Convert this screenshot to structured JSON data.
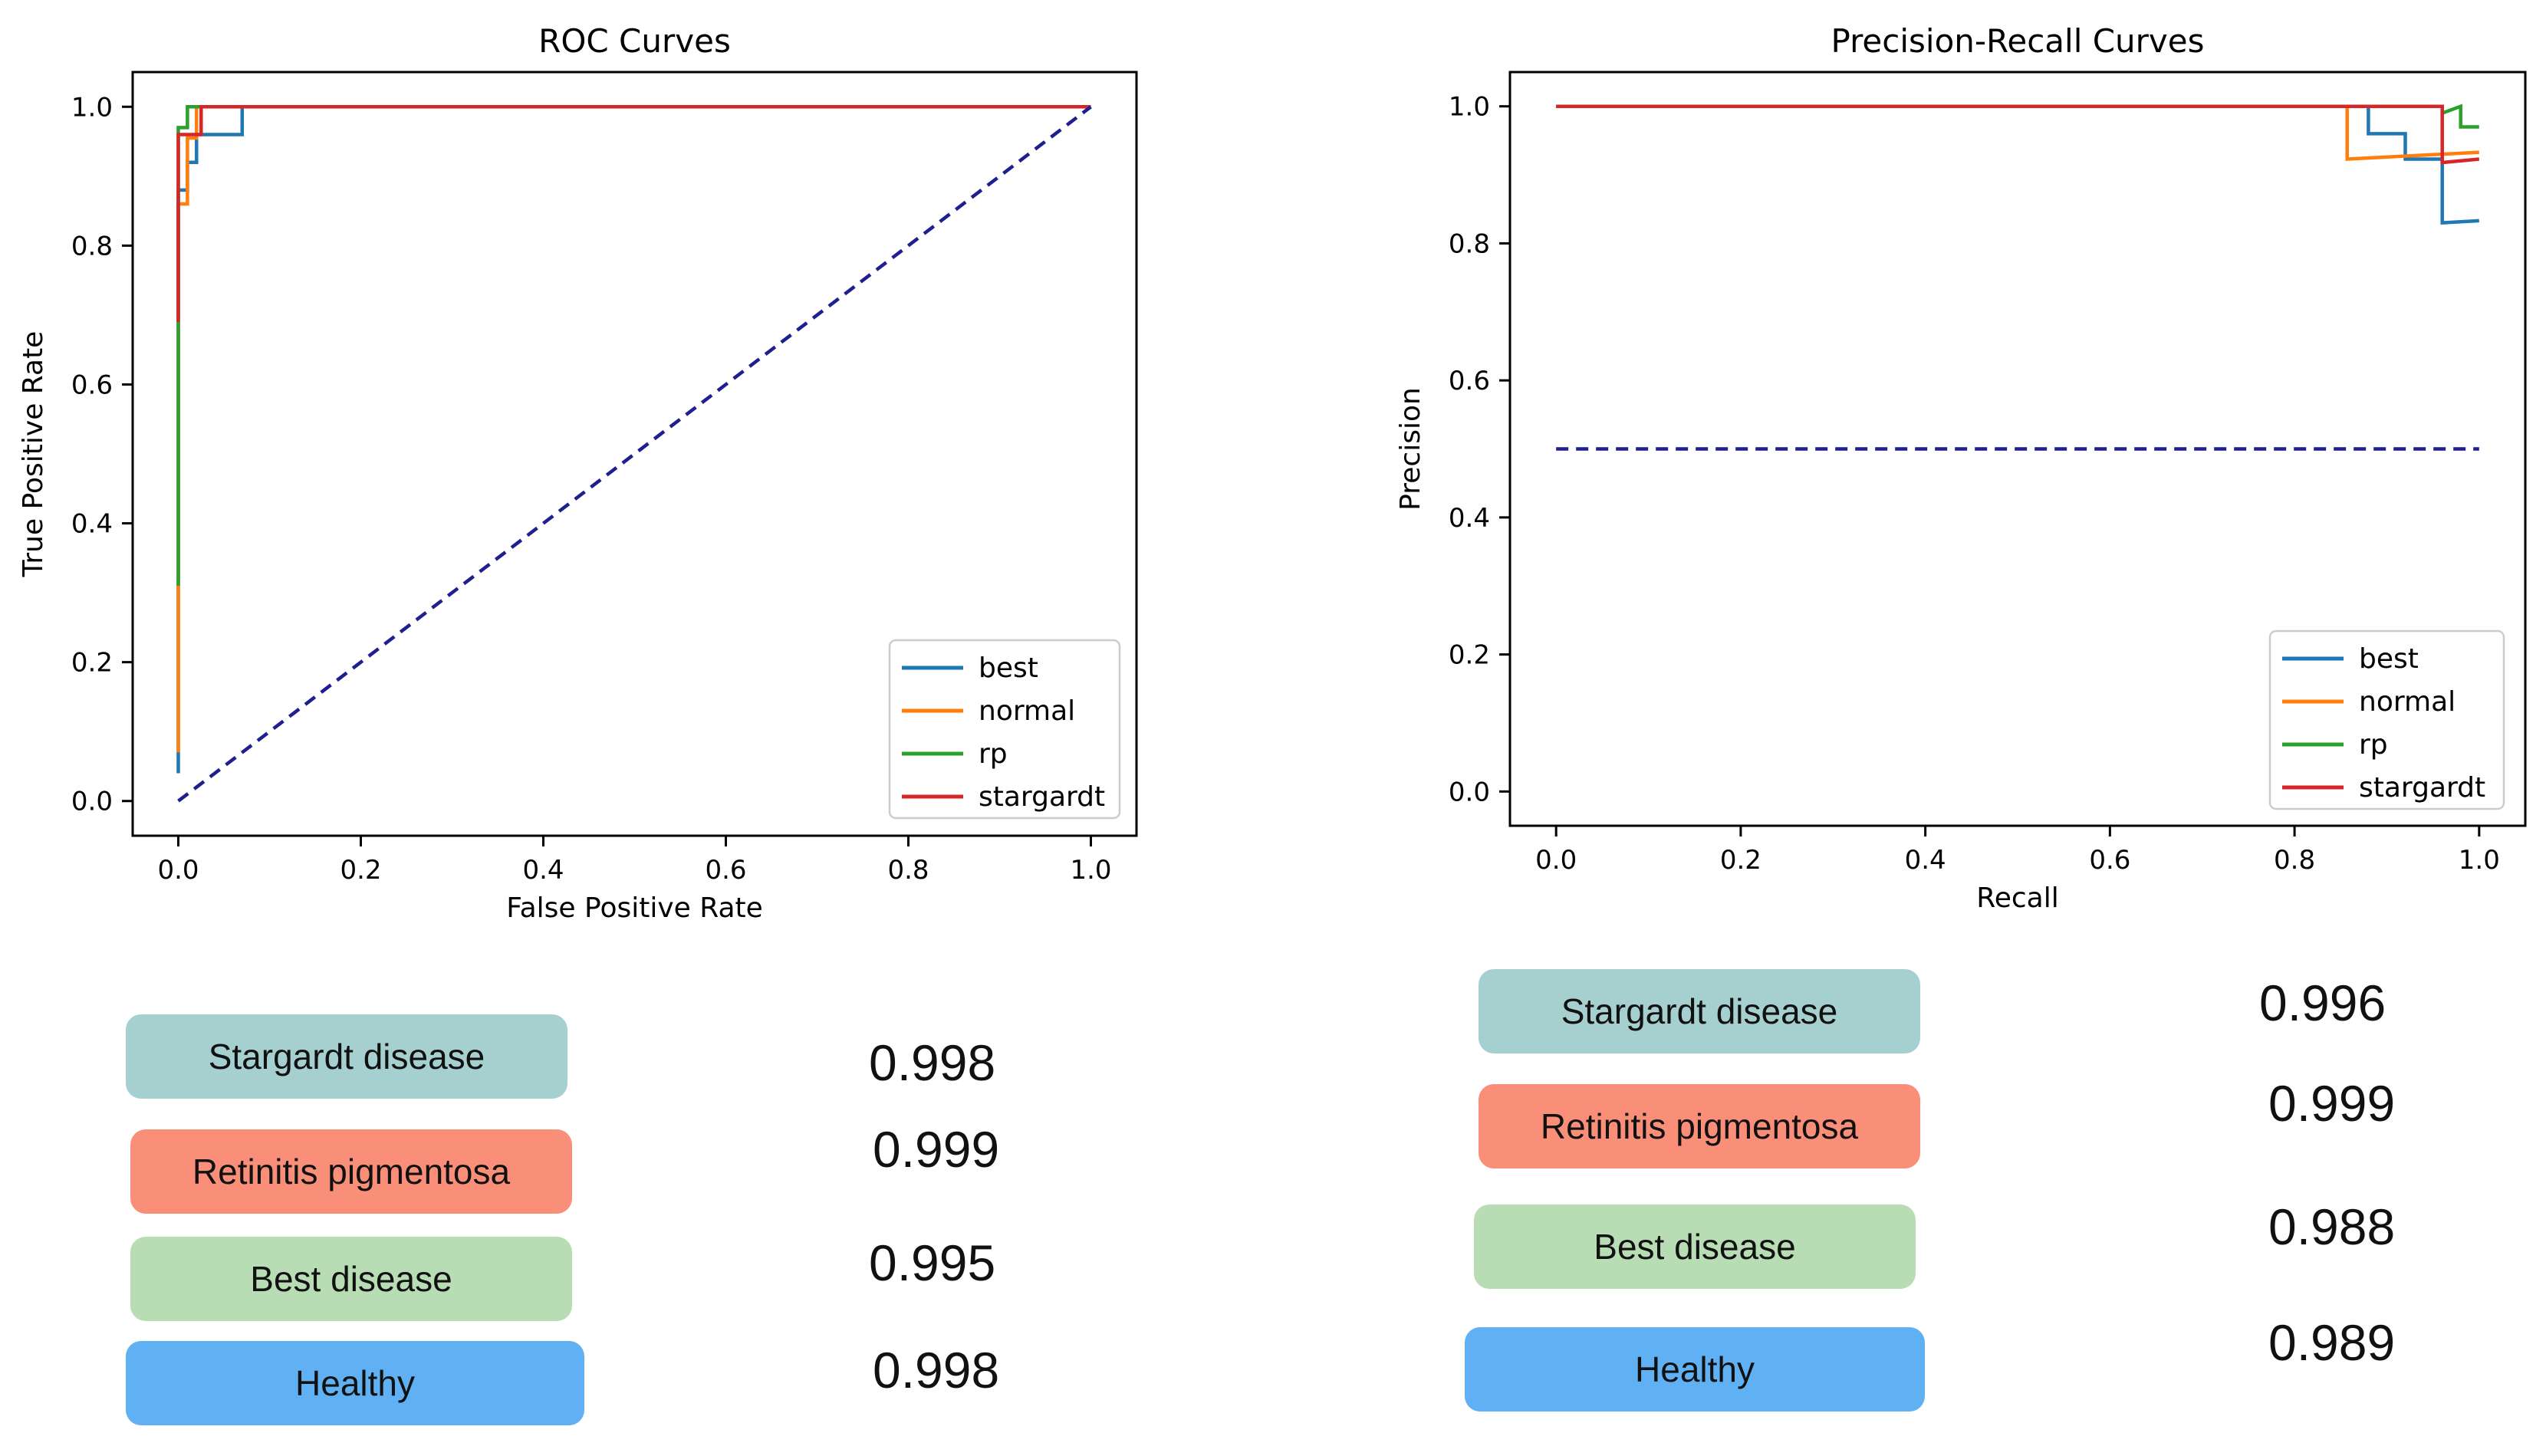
{
  "chart_data": [
    {
      "type": "line",
      "title": "ROC Curves",
      "xlabel": "False Positive Rate",
      "ylabel": "True Positive Rate",
      "xlim": [
        -0.05,
        1.05
      ],
      "ylim": [
        -0.05,
        1.05
      ],
      "xticks": [
        "0.0",
        "0.2",
        "0.4",
        "0.6",
        "0.8",
        "1.0"
      ],
      "yticks": [
        "0.0",
        "0.2",
        "0.4",
        "0.6",
        "0.8",
        "1.0"
      ],
      "grid": false,
      "legend_position": "bottom-right",
      "series": [
        {
          "name": "best",
          "color": "#1f77b4",
          "points": [
            [
              0,
              0.04
            ],
            [
              0,
              0.88
            ],
            [
              0.01,
              0.88
            ],
            [
              0.01,
              0.92
            ],
            [
              0.02,
              0.92
            ],
            [
              0.02,
              0.96
            ],
            [
              0.07,
              0.96
            ],
            [
              0.07,
              1.0
            ],
            [
              1.0,
              1.0
            ]
          ]
        },
        {
          "name": "normal",
          "color": "#ff7f0e",
          "points": [
            [
              0,
              0.07
            ],
            [
              0,
              0.31
            ],
            [
              0,
              0.86
            ],
            [
              0.01,
              0.86
            ],
            [
              0.01,
              0.955
            ],
            [
              0.02,
              0.955
            ],
            [
              0.02,
              1.0
            ],
            [
              1.0,
              1.0
            ]
          ]
        },
        {
          "name": "rp",
          "color": "#2ca02c",
          "points": [
            [
              0,
              0.31
            ],
            [
              0,
              0.69
            ],
            [
              0,
              0.97
            ],
            [
              0.01,
              0.97
            ],
            [
              0.01,
              1.0
            ],
            [
              1.0,
              1.0
            ]
          ]
        },
        {
          "name": "stargardt",
          "color": "#d62728",
          "points": [
            [
              0,
              0.69
            ],
            [
              0,
              0.96
            ],
            [
              0.025,
              0.96
            ],
            [
              0.025,
              1.0
            ],
            [
              1.0,
              1.0
            ]
          ]
        }
      ],
      "baseline": {
        "color": "#1f1f8f",
        "points": [
          [
            0,
            0
          ],
          [
            1,
            1
          ]
        ]
      }
    },
    {
      "type": "line",
      "title": "Precision-Recall Curves",
      "xlabel": "Recall",
      "ylabel": "Precision",
      "xlim": [
        -0.05,
        1.05
      ],
      "ylim": [
        -0.05,
        1.05
      ],
      "xticks": [
        "0.0",
        "0.2",
        "0.4",
        "0.6",
        "0.8",
        "1.0"
      ],
      "yticks": [
        "0.0",
        "0.2",
        "0.4",
        "0.6",
        "0.8",
        "1.0"
      ],
      "grid": false,
      "legend_position": "bottom-right",
      "series": [
        {
          "name": "best",
          "color": "#1f77b4",
          "points": [
            [
              0,
              1.0
            ],
            [
              0.88,
              1.0
            ],
            [
              0.88,
              0.96
            ],
            [
              0.92,
              0.96
            ],
            [
              0.92,
              0.923
            ],
            [
              0.96,
              0.923
            ],
            [
              0.96,
              0.83
            ],
            [
              1.0,
              0.833
            ]
          ]
        },
        {
          "name": "normal",
          "color": "#ff7f0e",
          "points": [
            [
              0,
              1.0
            ],
            [
              0.857,
              1.0
            ],
            [
              0.857,
              0.923
            ],
            [
              1.0,
              0.933
            ]
          ]
        },
        {
          "name": "rp",
          "color": "#2ca02c",
          "points": [
            [
              0,
              1.0
            ],
            [
              0.96,
              1.0
            ],
            [
              0.96,
              0.99
            ],
            [
              0.98,
              1.0
            ],
            [
              0.98,
              0.97
            ],
            [
              1.0,
              0.97
            ]
          ]
        },
        {
          "name": "stargardt",
          "color": "#d62728",
          "points": [
            [
              0,
              1.0
            ],
            [
              0.96,
              1.0
            ],
            [
              0.96,
              0.918
            ],
            [
              1.0,
              0.923
            ]
          ]
        }
      ],
      "baseline": {
        "color": "#1f1f8f",
        "points": [
          [
            0,
            0.5
          ],
          [
            1,
            0.5
          ]
        ]
      }
    }
  ],
  "left_scores": [
    {
      "label": "Stargardt disease",
      "value": "0.998",
      "color": "#a6cfd0"
    },
    {
      "label": "Retinitis pigmentosa",
      "value": "0.999",
      "color": "#fa8f79"
    },
    {
      "label": "Best disease",
      "value": "0.995",
      "color": "#b8dcb4"
    },
    {
      "label": "Healthy",
      "value": "0.998",
      "color": "#60b1f3"
    }
  ],
  "right_scores": [
    {
      "label": "Stargardt disease",
      "value": "0.996",
      "color": "#a6cfd0"
    },
    {
      "label": "Retinitis pigmentosa",
      "value": "0.999",
      "color": "#fa8f79"
    },
    {
      "label": "Best disease",
      "value": "0.988",
      "color": "#b8dcb4"
    },
    {
      "label": "Healthy",
      "value": "0.989",
      "color": "#60b1f3"
    }
  ]
}
